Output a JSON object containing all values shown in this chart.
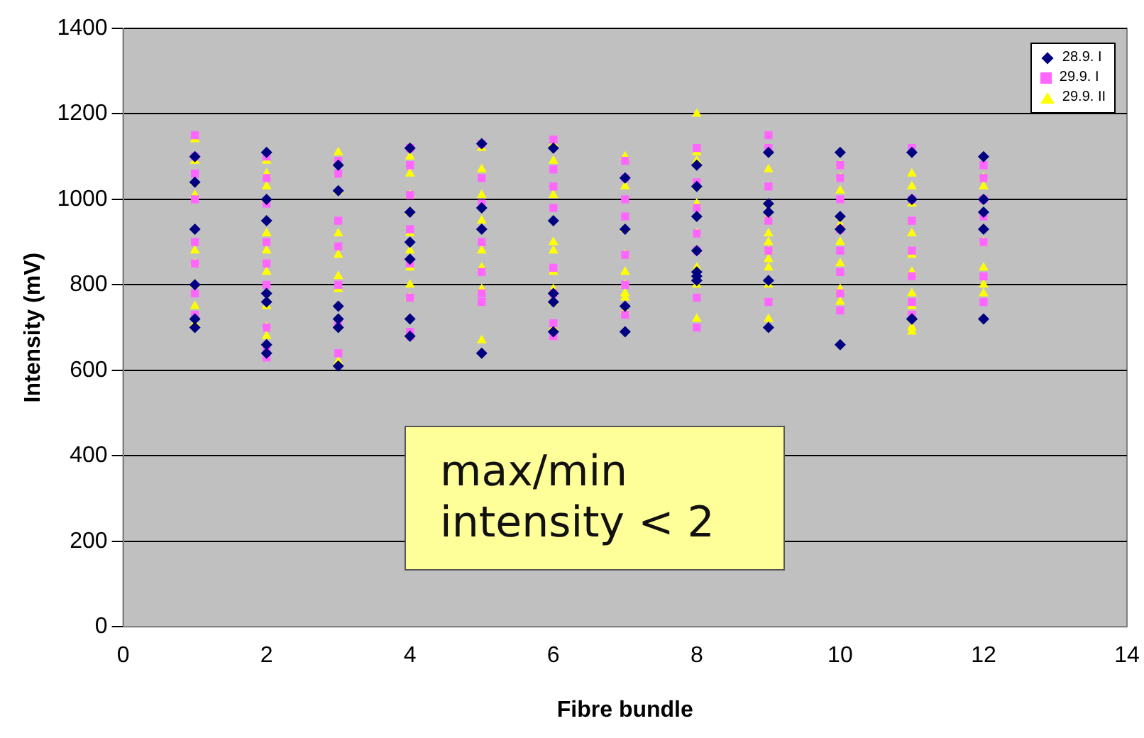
{
  "chart_data": {
    "type": "scatter",
    "xlabel": "Fibre bundle",
    "ylabel": "Intensity (mV)",
    "xlim": [
      0,
      14
    ],
    "xticks": [
      0,
      2,
      4,
      6,
      8,
      10,
      12,
      14
    ],
    "ylim": [
      0,
      1400
    ],
    "yticks": [
      0,
      200,
      400,
      600,
      800,
      1000,
      1200,
      1400
    ],
    "grid": "y",
    "legend": "top right",
    "annotations": [
      "max/min intensity < 2"
    ],
    "series": [
      {
        "name": "28.9. I",
        "color": "#000080",
        "marker": "diamond",
        "x": [
          1,
          1,
          1,
          1,
          1,
          1,
          2,
          2,
          2,
          2,
          2,
          2,
          2,
          3,
          3,
          3,
          3,
          3,
          3,
          4,
          4,
          4,
          4,
          4,
          4,
          5,
          5,
          5,
          5,
          6,
          6,
          6,
          6,
          6,
          7,
          7,
          7,
          7,
          8,
          8,
          8,
          8,
          8,
          8,
          8,
          9,
          9,
          9,
          9,
          9,
          10,
          10,
          10,
          10,
          11,
          11,
          11,
          11,
          12,
          12,
          12,
          12,
          12
        ],
        "values": [
          1100,
          1040,
          930,
          800,
          720,
          700,
          1110,
          1000,
          950,
          780,
          760,
          660,
          640,
          1080,
          1020,
          750,
          720,
          700,
          610,
          1120,
          970,
          900,
          860,
          720,
          680,
          1130,
          980,
          930,
          640,
          1120,
          950,
          780,
          760,
          690,
          1050,
          930,
          750,
          690,
          1080,
          1030,
          960,
          880,
          830,
          820,
          810,
          1110,
          990,
          970,
          810,
          700,
          1110,
          960,
          930,
          660,
          1110,
          1000,
          720,
          720,
          1100,
          1000,
          970,
          930,
          720
        ]
      },
      {
        "name": "29.9. I",
        "color": "#ff66ff",
        "marker": "square",
        "x": [
          1,
          1,
          1,
          1,
          1,
          1,
          1,
          1,
          2,
          2,
          2,
          2,
          2,
          2,
          2,
          2,
          2,
          3,
          3,
          3,
          3,
          3,
          3,
          3,
          4,
          4,
          4,
          4,
          4,
          4,
          4,
          4,
          5,
          5,
          5,
          5,
          5,
          5,
          5,
          6,
          6,
          6,
          6,
          6,
          6,
          6,
          6,
          7,
          7,
          7,
          7,
          7,
          7,
          7,
          8,
          8,
          8,
          8,
          8,
          8,
          8,
          9,
          9,
          9,
          9,
          9,
          9,
          10,
          10,
          10,
          10,
          10,
          10,
          10,
          10,
          11,
          11,
          11,
          11,
          11,
          11,
          11,
          12,
          12,
          12,
          12,
          12,
          12,
          12
        ],
        "values": [
          1150,
          1100,
          1060,
          1000,
          900,
          850,
          780,
          730,
          1100,
          1050,
          990,
          900,
          850,
          800,
          700,
          650,
          630,
          1090,
          1060,
          950,
          890,
          800,
          710,
          640,
          1120,
          1080,
          1010,
          930,
          850,
          770,
          690,
          680,
          1130,
          1050,
          990,
          900,
          830,
          780,
          760,
          1140,
          1070,
          1030,
          980,
          840,
          780,
          710,
          680,
          1090,
          1050,
          1000,
          960,
          870,
          800,
          730,
          1120,
          1040,
          980,
          920,
          880,
          770,
          700,
          1150,
          1120,
          1030,
          950,
          880,
          760,
          1080,
          1050,
          1000,
          930,
          880,
          830,
          780,
          740,
          1120,
          1000,
          950,
          880,
          820,
          760,
          730,
          1080,
          1050,
          1000,
          960,
          900,
          820,
          760
        ]
      },
      {
        "name": "29.9. II",
        "color": "#ffff00",
        "marker": "triangle",
        "x": [
          1,
          1,
          1,
          1,
          1,
          1,
          1,
          1,
          1,
          2,
          2,
          2,
          2,
          2,
          2,
          2,
          2,
          2,
          2,
          3,
          3,
          3,
          3,
          3,
          3,
          3,
          3,
          4,
          4,
          4,
          4,
          4,
          4,
          4,
          4,
          4,
          4,
          5,
          5,
          5,
          5,
          5,
          5,
          5,
          5,
          6,
          6,
          6,
          6,
          6,
          6,
          6,
          6,
          6,
          7,
          7,
          7,
          7,
          7,
          7,
          7,
          7,
          7,
          8,
          8,
          8,
          8,
          8,
          8,
          8,
          8,
          8,
          8,
          9,
          9,
          9,
          9,
          9,
          9,
          9,
          9,
          9,
          9,
          10,
          10,
          10,
          10,
          10,
          10,
          10,
          10,
          10,
          11,
          11,
          11,
          11,
          11,
          11,
          11,
          11,
          11,
          11,
          12,
          12,
          12,
          12,
          12,
          12,
          12
        ],
        "values": [
          1140,
          1090,
          1040,
          1010,
          880,
          850,
          800,
          750,
          710,
          1090,
          1060,
          1030,
          1000,
          920,
          880,
          830,
          750,
          700,
          680,
          1110,
          1060,
          1020,
          920,
          870,
          820,
          790,
          620,
          1100,
          1060,
          1010,
          970,
          920,
          880,
          840,
          800,
          770,
          680,
          1120,
          1070,
          1010,
          950,
          880,
          840,
          790,
          670,
          1130,
          1090,
          1010,
          900,
          880,
          830,
          790,
          760,
          700,
          1100,
          1030,
          930,
          870,
          830,
          800,
          780,
          770,
          740,
          1200,
          1110,
          1090,
          1030,
          990,
          920,
          880,
          840,
          800,
          720,
          1070,
          990,
          960,
          920,
          900,
          880,
          860,
          840,
          800,
          720,
          1080,
          1050,
          1020,
          960,
          940,
          900,
          850,
          790,
          760,
          1060,
          1030,
          990,
          920,
          870,
          830,
          780,
          750,
          700,
          690,
          1050,
          1030,
          960,
          900,
          840,
          800,
          780
        ]
      }
    ]
  }
}
